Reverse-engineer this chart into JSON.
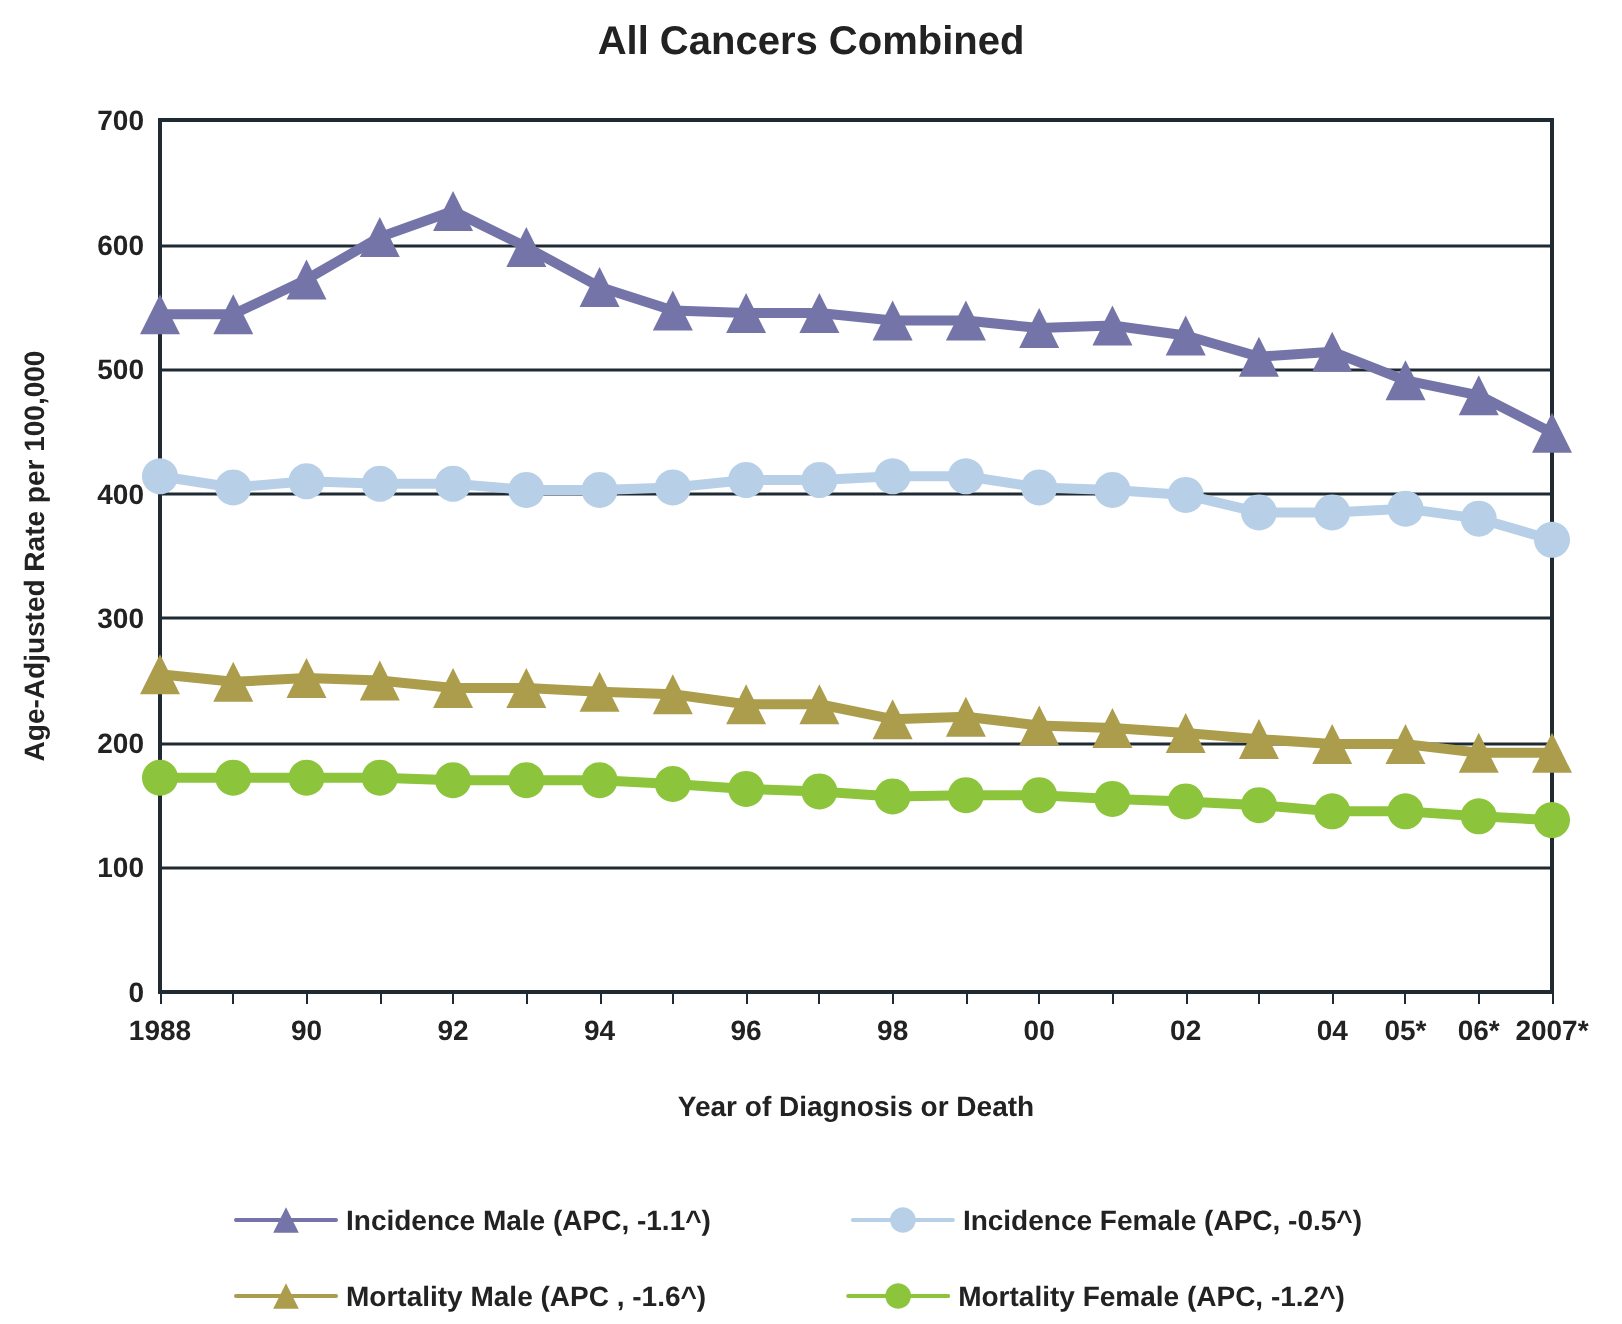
{
  "chart_data": {
    "type": "line",
    "title": "All Cancers Combined",
    "xlabel": "Year of Diagnosis or Death",
    "ylabel": "Age-Adjusted Rate per 100,000",
    "categories": [
      "1988",
      null,
      "90",
      null,
      "92",
      null,
      "94",
      null,
      "96",
      null,
      "98",
      null,
      "00",
      null,
      "02",
      null,
      "04",
      "05*",
      "06*",
      "2007*"
    ],
    "series": [
      {
        "name": "Incidence Male (APC, -1.1^)",
        "color": "#7474a8",
        "marker": "triangle",
        "values": [
          544,
          544,
          572,
          606,
          627,
          598,
          566,
          547,
          545,
          545,
          539,
          539,
          533,
          535,
          527,
          510,
          514,
          491,
          479,
          449
        ]
      },
      {
        "name": "Incidence Female (APC, -0.5^)",
        "color": "#b8cfe8",
        "marker": "circle",
        "values": [
          414,
          405,
          410,
          408,
          408,
          403,
          403,
          405,
          411,
          411,
          414,
          414,
          405,
          403,
          399,
          385,
          385,
          388,
          380,
          363
        ]
      },
      {
        "name": "Mortality Male (APC , -1.6^)",
        "color": "#ab9d4c",
        "marker": "triangle",
        "values": [
          255,
          249,
          252,
          250,
          244,
          244,
          241,
          239,
          231,
          231,
          219,
          221,
          214,
          212,
          208,
          203,
          199,
          199,
          192,
          192
        ]
      },
      {
        "name": "Mortality Female (APC, -1.2^)",
        "color": "#8cc43c",
        "marker": "circle",
        "values": [
          172,
          172,
          172,
          172,
          170,
          170,
          170,
          167,
          163,
          161,
          157,
          158,
          158,
          155,
          153,
          150,
          145,
          145,
          141,
          138
        ]
      }
    ],
    "ylim": [
      0,
      700
    ],
    "yticks": [
      0,
      100,
      200,
      300,
      400,
      500,
      600,
      700
    ],
    "grid": "y",
    "legend": "bottom",
    "line_style": "solid"
  }
}
